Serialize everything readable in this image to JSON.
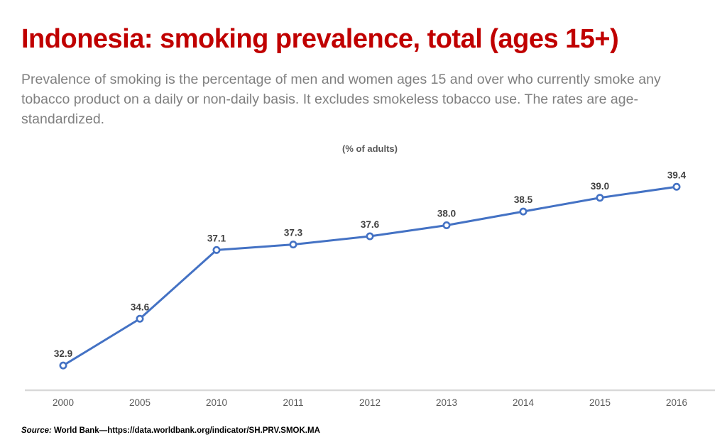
{
  "page": {
    "title": "Indonesia: smoking prevalence, total (ages 15+)",
    "subtitle": "Prevalence of smoking is the percentage of men and women ages 15 and over who currently smoke any tobacco product on a daily or non-daily basis. It excludes smokeless tobacco use. The rates are age-standardized.",
    "source_prefix": "Source:",
    "source_text": " World Bank—https://data.worldbank.org/indicator/SH.PRV.SMOK.MA"
  },
  "colors": {
    "title": "#C00000",
    "subtitle": "#808080",
    "chart_title": "#595959",
    "line": "#4472C4",
    "marker_fill": "#FFFFFF",
    "data_label": "#404040",
    "axis_line": "#D9D9D9",
    "axis_label": "#595959",
    "source": "#000000"
  },
  "chart_data": {
    "type": "line",
    "title": "(% of adults)",
    "categories": [
      "2000",
      "2005",
      "2010",
      "2011",
      "2012",
      "2013",
      "2014",
      "2015",
      "2016"
    ],
    "series": [
      {
        "name": "Smoking prevalence, total (ages 15+)",
        "values": [
          32.9,
          34.6,
          37.1,
          37.3,
          37.6,
          38.0,
          38.5,
          39.0,
          39.4
        ]
      }
    ],
    "xlabel": "",
    "ylabel": "",
    "ylim": [
      32,
      40
    ],
    "grid": false,
    "legend": "none",
    "data_labels": true,
    "y_axis_visible": false,
    "x_axis_visible": true
  }
}
